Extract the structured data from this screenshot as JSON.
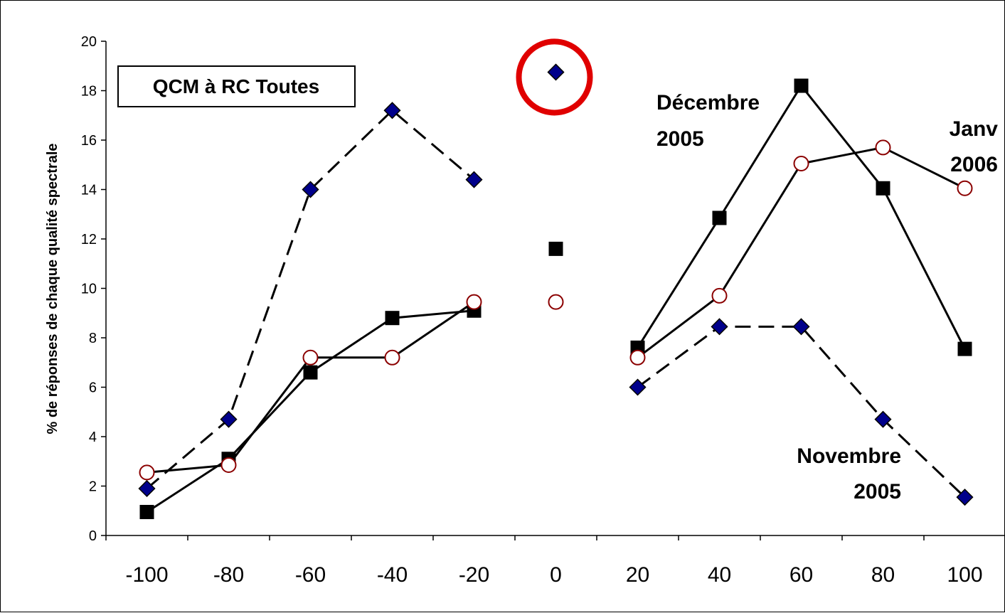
{
  "chart_data": {
    "type": "line",
    "title": "QCM à RC Toutes",
    "xlabel": "",
    "ylabel": "% de réponses de chaque qualité spectrale",
    "x": [
      -100,
      -80,
      -60,
      -40,
      -20,
      0,
      20,
      40,
      60,
      80,
      100
    ],
    "x_ticks": [
      "-100",
      "-80",
      "-60",
      "-40",
      "-20",
      "0",
      "20",
      "40",
      "60",
      "80",
      "100"
    ],
    "y_ticks": [
      "0",
      "2",
      "4",
      "6",
      "8",
      "10",
      "12",
      "14",
      "16",
      "18",
      "20"
    ],
    "ylim": [
      0,
      20
    ],
    "xlim": [
      -110,
      110
    ],
    "grid": false,
    "series": [
      {
        "id": "nov2005",
        "marker": "diamond",
        "line_style": "dashed",
        "color": "#00008B",
        "values": [
          1.9,
          4.7,
          14.0,
          17.2,
          14.4,
          18.75,
          6.0,
          8.45,
          8.45,
          4.7,
          1.55
        ]
      },
      {
        "id": "dec2005",
        "marker": "square",
        "line_style": "solid",
        "color": "#000000",
        "values": [
          0.95,
          3.1,
          6.6,
          8.8,
          9.1,
          11.6,
          7.6,
          12.85,
          18.2,
          14.05,
          7.55
        ]
      },
      {
        "id": "jan2006",
        "marker": "circle",
        "line_style": "solid",
        "color": "#8B0000",
        "values": [
          2.55,
          2.85,
          7.2,
          7.2,
          9.45,
          9.45,
          7.2,
          9.7,
          15.05,
          15.7,
          14.05
        ]
      }
    ],
    "annotations": {
      "dec_line1": "Décembre",
      "dec_line2": "2005",
      "jan_line1": "Janv",
      "jan_line2": "2006",
      "nov_line1": "Novembre",
      "nov_line2": "2005"
    },
    "highlight": {
      "x": 0,
      "y": 18.75,
      "color": "#E00000"
    }
  }
}
